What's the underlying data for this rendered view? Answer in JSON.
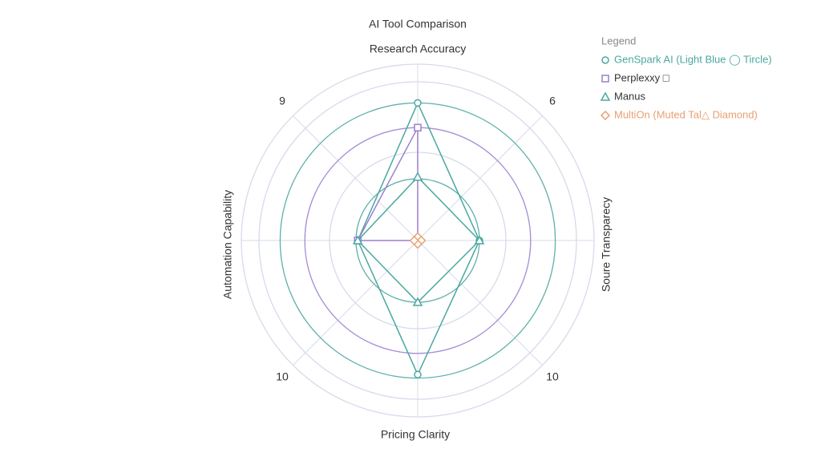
{
  "chart_data": {
    "type": "radar",
    "title": "AI Tool Comparison",
    "legend_title": "Legend",
    "legend": "top-right",
    "categories": [
      "Research Accuracy",
      "Soure Transparecy",
      "Pricing Clarity",
      "Automation Capability"
    ],
    "rlim": [
      0,
      10
    ],
    "rticks": [
      3.5,
      5,
      6.4,
      7.8,
      9,
      10
    ],
    "ring_colors": [
      "#5fb0a8",
      "#d6dbea",
      "#a58bd6",
      "#5fb0a8",
      "#d6dbea",
      "#d6dbea"
    ],
    "annotations": [
      9,
      6,
      10,
      10
    ],
    "series": [
      {
        "name": "GenSpark AI (Light Blue ◯ Tircle)",
        "color": "#4aa8a0",
        "marker": "circle",
        "values": [
          7.8,
          3.5,
          7.6,
          3.4
        ]
      },
      {
        "name": "Perplexxy □",
        "color": "#9b7fd1",
        "marker": "square",
        "values": [
          6.4,
          0,
          0,
          3.4
        ]
      },
      {
        "name": "Manus",
        "color": "#4aa8a0",
        "marker": "triangle",
        "values": [
          3.6,
          3.5,
          3.5,
          3.4
        ]
      },
      {
        "name": "MultiOn (Muted Tal△ Diamond)",
        "color": "#e8a070",
        "marker": "diamond",
        "values": [
          0.2,
          0.2,
          0.2,
          0.2
        ]
      }
    ]
  }
}
